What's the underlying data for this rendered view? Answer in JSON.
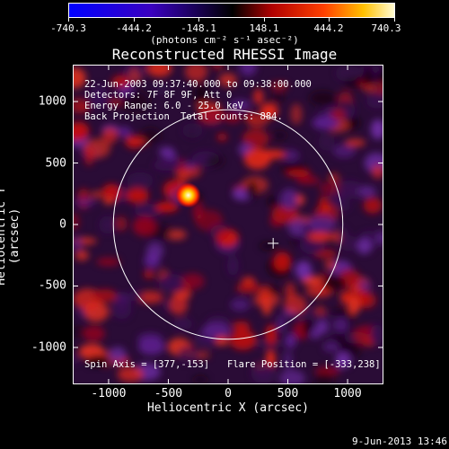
{
  "colorbar": {
    "tick_labels": [
      "-740.3",
      "-444.2",
      "-148.1",
      "148.1",
      "444.2",
      "740.3"
    ],
    "units": "(photons cm⁻² s⁻¹ asec⁻²)"
  },
  "header": {
    "title": "Reconstructed RHESSI Image"
  },
  "annotations": {
    "time_range": "22-Jun-2003 09:37:40.000 to 09:38:00.000",
    "detectors": "Detectors: 7F 8F 9F, Att 0",
    "energy_range": "Energy Range: 6.0 - 25.0 keV",
    "method": "Back Projection",
    "total_counts": "Total counts: 884.",
    "spin_axis": "Spin Axis = [377,-153]",
    "flare_position": "Flare Position = [-333,238]"
  },
  "chart_data": {
    "type": "heatmap",
    "title": "Reconstructed RHESSI Image",
    "xlabel": "Heliocentric X (arcsec)",
    "ylabel": "Heliocentric Y (arcsec)",
    "xlim": [
      -1300,
      1300
    ],
    "ylim": [
      -1300,
      1300
    ],
    "xticks": [
      -1000,
      -500,
      0,
      500,
      1000
    ],
    "yticks": [
      -1000,
      -500,
      0,
      500,
      1000
    ],
    "xtick_labels": [
      "-1000",
      "-500",
      "0",
      "500",
      "1000"
    ],
    "ytick_labels": [
      "-1000",
      "-500",
      "0",
      "500",
      "1000"
    ],
    "value_range": [
      -740.3,
      740.3
    ],
    "solar_disk": {
      "center": [
        0,
        0
      ],
      "radius": 960
    },
    "spin_axis_marker": [
      377,
      -153
    ],
    "flare_source": [
      -333,
      238
    ]
  },
  "footer": {
    "date": "9-Jun-2013 13:46"
  }
}
